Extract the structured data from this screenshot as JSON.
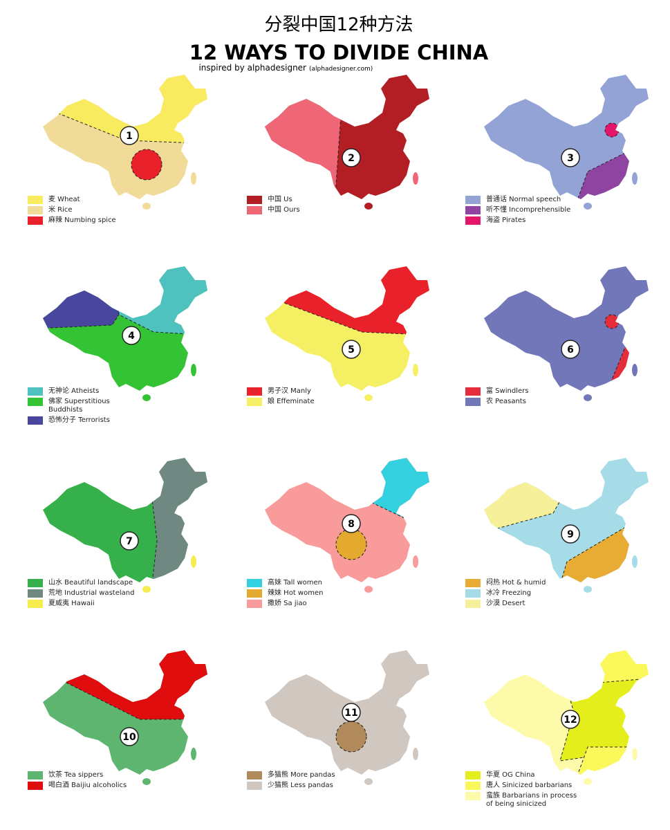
{
  "header": {
    "title_cn": "分裂中国12种方法",
    "title": "12 WAYS TO DIVIDE CHINA",
    "subtitle": "inspired by alphadesigner",
    "source": "(alphadesigner.com)"
  },
  "maps": [
    {
      "number": 1,
      "legend": [
        {
          "label": "麦 Wheat",
          "color": "#f9eb60"
        },
        {
          "label": "米 Rice",
          "color": "#f0dc98"
        },
        {
          "label": "麻辣 Numbing spice",
          "color": "#e8212a"
        }
      ]
    },
    {
      "number": 2,
      "legend": [
        {
          "label": "中国 Us",
          "color": "#b31d24"
        },
        {
          "label": "中国 Ours",
          "color": "#ef6677"
        }
      ]
    },
    {
      "number": 3,
      "legend": [
        {
          "label": "普通话 Normal speech",
          "color": "#94a3d6"
        },
        {
          "label": "听不懂 Incomprehensible",
          "color": "#8e44a0"
        },
        {
          "label": "海盗 Pirates",
          "color": "#e4156b"
        }
      ]
    },
    {
      "number": 4,
      "legend": [
        {
          "label": "无神论 Atheists",
          "color": "#4fc1be"
        },
        {
          "label": "佛家 Superstitious Buddhists",
          "color": "#35c336"
        },
        {
          "label": "恐怖分子 Terrorists",
          "color": "#48469d"
        }
      ]
    },
    {
      "number": 5,
      "legend": [
        {
          "label": "男子汉 Manly",
          "color": "#e9212b"
        },
        {
          "label": "娘 Effeminate",
          "color": "#f5ef63"
        }
      ]
    },
    {
      "number": 6,
      "legend": [
        {
          "label": "富 Swindlers",
          "color": "#e52d3b"
        },
        {
          "label": "农 Peasants",
          "color": "#7277b9"
        }
      ]
    },
    {
      "number": 7,
      "legend": [
        {
          "label": "山水 Beautiful landscape",
          "color": "#35b04a"
        },
        {
          "label": "荒地 Industrial wasteland",
          "color": "#6f8882"
        },
        {
          "label": "夏威夷 Hawaii",
          "color": "#f7ec4f"
        }
      ]
    },
    {
      "number": 8,
      "legend": [
        {
          "label": "高妹 Tall women",
          "color": "#33d0e0"
        },
        {
          "label": "辣妹 Hot women",
          "color": "#e4aa2f"
        },
        {
          "label": "撒娇 Sa jiao",
          "color": "#f99b9b"
        }
      ]
    },
    {
      "number": 9,
      "legend": [
        {
          "label": "闷热 Hot & humid",
          "color": "#e8ac34"
        },
        {
          "label": "冰冷 Freezing",
          "color": "#a6dce8"
        },
        {
          "label": "沙漠 Desert",
          "color": "#f7f09a"
        }
      ]
    },
    {
      "number": 10,
      "legend": [
        {
          "label": "饮茶 Tea sippers",
          "color": "#5db56f"
        },
        {
          "label": "喝白酒 Baijiu alcoholics",
          "color": "#e00d0e"
        }
      ]
    },
    {
      "number": 11,
      "legend": [
        {
          "label": "多猫熊 More pandas",
          "color": "#b08a5a"
        },
        {
          "label": "少猫熊 Less pandas",
          "color": "#d0c8c0"
        }
      ]
    },
    {
      "number": 12,
      "legend": [
        {
          "label": "华夏 OG China",
          "color": "#e4ee1c"
        },
        {
          "label": "唐人 Sinicized barbarians",
          "color": "#fbf85c"
        },
        {
          "label": "蛮族 Barbarians in process of being sinicized",
          "color": "#fdfbaa"
        }
      ]
    }
  ]
}
